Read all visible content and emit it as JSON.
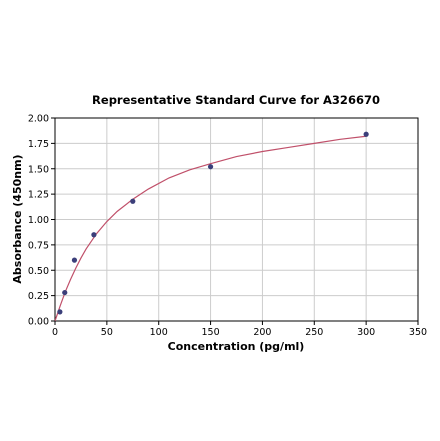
{
  "chart_data": {
    "type": "scatter",
    "title": "Representative Standard Curve for A326670",
    "xlabel": "Concentration (pg/ml)",
    "ylabel": "Absorbance (450nm)",
    "xlim": [
      0,
      350
    ],
    "ylim": [
      0,
      2.0
    ],
    "xticks": [
      0,
      50,
      100,
      150,
      200,
      250,
      300,
      350
    ],
    "yticks": [
      0,
      0.25,
      0.5,
      0.75,
      1.0,
      1.25,
      1.5,
      1.75,
      2.0
    ],
    "xtick_labels": [
      "0",
      "50",
      "100",
      "150",
      "200",
      "250",
      "300",
      "350"
    ],
    "ytick_labels": [
      "0.00",
      "0.25",
      "0.50",
      "0.75",
      "1.00",
      "1.25",
      "1.50",
      "1.75",
      "2.00"
    ],
    "grid": true,
    "series": [
      {
        "kind": "points",
        "x": [
          4.7,
          9.4,
          18.75,
          37.5,
          75,
          150,
          300
        ],
        "y": [
          0.09,
          0.28,
          0.6,
          0.85,
          1.18,
          1.52,
          1.84
        ],
        "color": "#3b3f7a"
      },
      {
        "kind": "fit-curve",
        "x": [
          0,
          5,
          10,
          15,
          20,
          25,
          30,
          40,
          50,
          60,
          75,
          90,
          110,
          130,
          150,
          175,
          200,
          225,
          250,
          275,
          300
        ],
        "y": [
          0.0,
          0.15,
          0.29,
          0.41,
          0.52,
          0.62,
          0.71,
          0.86,
          0.98,
          1.08,
          1.2,
          1.3,
          1.41,
          1.49,
          1.55,
          1.62,
          1.67,
          1.71,
          1.75,
          1.79,
          1.82
        ],
        "color": "#c0506a"
      }
    ]
  }
}
